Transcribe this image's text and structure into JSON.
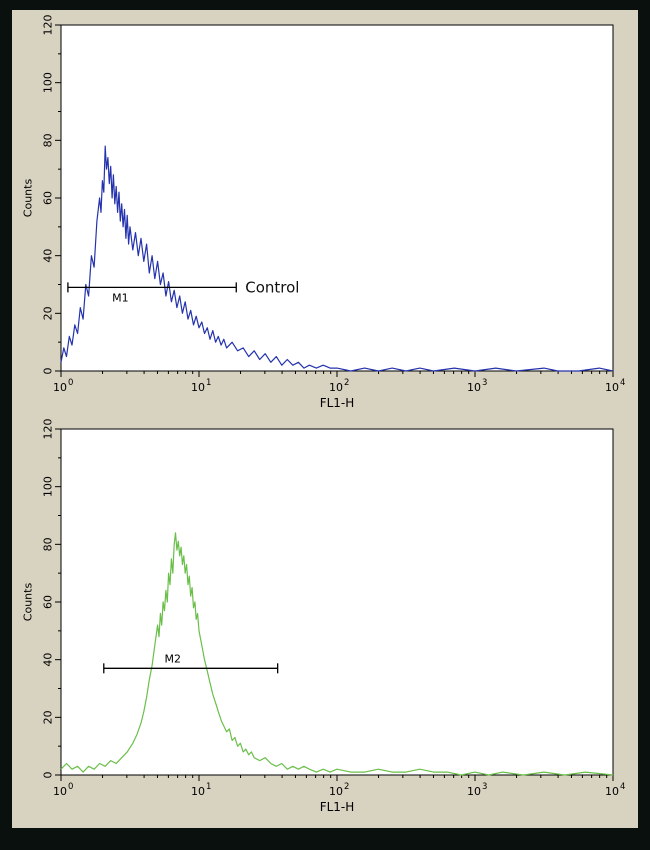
{
  "figure": {
    "frame_color": "#0a100e",
    "panel_color": "#d8d2c0",
    "plot_bg": "#ffffff",
    "axis_color": "#000000"
  },
  "chart_data": [
    {
      "type": "line",
      "name": "control-histogram",
      "xlabel": "FL1-H",
      "ylabel": "Counts",
      "x_scale": "log10",
      "x_range_exponents": [
        0,
        4
      ],
      "ylim": [
        0,
        120
      ],
      "yticks": [
        0,
        20,
        40,
        60,
        80,
        100,
        120
      ],
      "xticks": [
        "10^0",
        "10^1",
        "10^2",
        "10^3",
        "10^4"
      ],
      "grid": false,
      "legend": "none",
      "line_color": "#2433ad",
      "marker": {
        "label": "M1",
        "annotation": "Control",
        "y": 29,
        "x1": 0.05,
        "x2": 1.27,
        "label_x": 0.43,
        "label_side": "below"
      },
      "points": [
        [
          0.0,
          3
        ],
        [
          0.02,
          8
        ],
        [
          0.04,
          5
        ],
        [
          0.06,
          12
        ],
        [
          0.08,
          9
        ],
        [
          0.1,
          16
        ],
        [
          0.12,
          13
        ],
        [
          0.14,
          22
        ],
        [
          0.16,
          18
        ],
        [
          0.18,
          30
        ],
        [
          0.2,
          26
        ],
        [
          0.22,
          40
        ],
        [
          0.24,
          36
        ],
        [
          0.26,
          52
        ],
        [
          0.28,
          60
        ],
        [
          0.29,
          55
        ],
        [
          0.3,
          66
        ],
        [
          0.31,
          62
        ],
        [
          0.32,
          78
        ],
        [
          0.33,
          70
        ],
        [
          0.34,
          74
        ],
        [
          0.35,
          65
        ],
        [
          0.36,
          71
        ],
        [
          0.37,
          60
        ],
        [
          0.38,
          68
        ],
        [
          0.39,
          58
        ],
        [
          0.4,
          64
        ],
        [
          0.41,
          55
        ],
        [
          0.42,
          62
        ],
        [
          0.43,
          52
        ],
        [
          0.44,
          58
        ],
        [
          0.45,
          50
        ],
        [
          0.46,
          56
        ],
        [
          0.47,
          46
        ],
        [
          0.48,
          54
        ],
        [
          0.49,
          44
        ],
        [
          0.5,
          50
        ],
        [
          0.52,
          42
        ],
        [
          0.54,
          48
        ],
        [
          0.56,
          40
        ],
        [
          0.58,
          46
        ],
        [
          0.6,
          38
        ],
        [
          0.62,
          44
        ],
        [
          0.64,
          34
        ],
        [
          0.66,
          40
        ],
        [
          0.68,
          32
        ],
        [
          0.7,
          38
        ],
        [
          0.72,
          30
        ],
        [
          0.74,
          34
        ],
        [
          0.76,
          26
        ],
        [
          0.78,
          31
        ],
        [
          0.8,
          24
        ],
        [
          0.82,
          28
        ],
        [
          0.84,
          22
        ],
        [
          0.86,
          26
        ],
        [
          0.88,
          20
        ],
        [
          0.9,
          24
        ],
        [
          0.92,
          18
        ],
        [
          0.94,
          21
        ],
        [
          0.96,
          16
        ],
        [
          0.98,
          19
        ],
        [
          1.0,
          15
        ],
        [
          1.02,
          17
        ],
        [
          1.04,
          13
        ],
        [
          1.06,
          15
        ],
        [
          1.08,
          11
        ],
        [
          1.1,
          14
        ],
        [
          1.12,
          10
        ],
        [
          1.14,
          12
        ],
        [
          1.16,
          9
        ],
        [
          1.18,
          11
        ],
        [
          1.2,
          8
        ],
        [
          1.24,
          10
        ],
        [
          1.28,
          7
        ],
        [
          1.32,
          8
        ],
        [
          1.36,
          5
        ],
        [
          1.4,
          7
        ],
        [
          1.44,
          4
        ],
        [
          1.48,
          6
        ],
        [
          1.52,
          3
        ],
        [
          1.56,
          5
        ],
        [
          1.6,
          2
        ],
        [
          1.64,
          4
        ],
        [
          1.68,
          2
        ],
        [
          1.72,
          3
        ],
        [
          1.76,
          1
        ],
        [
          1.8,
          2
        ],
        [
          1.85,
          1
        ],
        [
          1.9,
          2
        ],
        [
          1.95,
          1
        ],
        [
          2.0,
          1
        ],
        [
          2.1,
          0
        ],
        [
          2.2,
          1
        ],
        [
          2.3,
          0
        ],
        [
          2.4,
          1
        ],
        [
          2.5,
          0
        ],
        [
          2.6,
          1
        ],
        [
          2.7,
          0
        ],
        [
          2.85,
          1
        ],
        [
          3.0,
          0
        ],
        [
          3.15,
          1
        ],
        [
          3.3,
          0
        ],
        [
          3.5,
          1
        ],
        [
          3.6,
          0
        ],
        [
          3.75,
          0
        ],
        [
          3.9,
          1
        ],
        [
          4.0,
          0
        ]
      ]
    },
    {
      "type": "line",
      "name": "antibody-histogram",
      "xlabel": "FL1-H",
      "ylabel": "Counts",
      "x_scale": "log10",
      "x_range_exponents": [
        0,
        4
      ],
      "ylim": [
        0,
        120
      ],
      "yticks": [
        0,
        20,
        40,
        60,
        80,
        100,
        120
      ],
      "xticks": [
        "10^0",
        "10^1",
        "10^2",
        "10^3",
        "10^4"
      ],
      "grid": false,
      "legend": "none",
      "line_color": "#6abf49",
      "marker": {
        "label": "M2",
        "annotation": "",
        "y": 37,
        "x1": 0.31,
        "x2": 1.57,
        "label_x": 0.81,
        "label_side": "above"
      },
      "points": [
        [
          0.0,
          2
        ],
        [
          0.04,
          4
        ],
        [
          0.08,
          2
        ],
        [
          0.12,
          3
        ],
        [
          0.16,
          1
        ],
        [
          0.2,
          3
        ],
        [
          0.24,
          2
        ],
        [
          0.28,
          4
        ],
        [
          0.32,
          3
        ],
        [
          0.36,
          5
        ],
        [
          0.4,
          4
        ],
        [
          0.44,
          6
        ],
        [
          0.48,
          8
        ],
        [
          0.52,
          11
        ],
        [
          0.55,
          14
        ],
        [
          0.58,
          18
        ],
        [
          0.6,
          22
        ],
        [
          0.62,
          27
        ],
        [
          0.64,
          33
        ],
        [
          0.66,
          38
        ],
        [
          0.68,
          45
        ],
        [
          0.7,
          52
        ],
        [
          0.71,
          48
        ],
        [
          0.72,
          56
        ],
        [
          0.73,
          52
        ],
        [
          0.74,
          60
        ],
        [
          0.75,
          57
        ],
        [
          0.76,
          64
        ],
        [
          0.77,
          60
        ],
        [
          0.78,
          70
        ],
        [
          0.79,
          66
        ],
        [
          0.8,
          75
        ],
        [
          0.81,
          70
        ],
        [
          0.82,
          80
        ],
        [
          0.83,
          84
        ],
        [
          0.84,
          78
        ],
        [
          0.85,
          81
        ],
        [
          0.86,
          76
        ],
        [
          0.87,
          79
        ],
        [
          0.88,
          73
        ],
        [
          0.89,
          76
        ],
        [
          0.9,
          70
        ],
        [
          0.91,
          73
        ],
        [
          0.92,
          66
        ],
        [
          0.93,
          69
        ],
        [
          0.94,
          62
        ],
        [
          0.95,
          65
        ],
        [
          0.96,
          58
        ],
        [
          0.97,
          60
        ],
        [
          0.98,
          54
        ],
        [
          0.99,
          56
        ],
        [
          1.0,
          50
        ],
        [
          1.02,
          45
        ],
        [
          1.04,
          40
        ],
        [
          1.06,
          36
        ],
        [
          1.08,
          32
        ],
        [
          1.1,
          28
        ],
        [
          1.12,
          25
        ],
        [
          1.14,
          22
        ],
        [
          1.16,
          19
        ],
        [
          1.18,
          17
        ],
        [
          1.2,
          15
        ],
        [
          1.22,
          16
        ],
        [
          1.24,
          12
        ],
        [
          1.26,
          13
        ],
        [
          1.28,
          10
        ],
        [
          1.3,
          11
        ],
        [
          1.32,
          8
        ],
        [
          1.34,
          9
        ],
        [
          1.36,
          7
        ],
        [
          1.38,
          8
        ],
        [
          1.4,
          6
        ],
        [
          1.44,
          5
        ],
        [
          1.48,
          6
        ],
        [
          1.52,
          4
        ],
        [
          1.56,
          3
        ],
        [
          1.6,
          4
        ],
        [
          1.64,
          2
        ],
        [
          1.68,
          3
        ],
        [
          1.72,
          2
        ],
        [
          1.76,
          3
        ],
        [
          1.8,
          2
        ],
        [
          1.85,
          1
        ],
        [
          1.9,
          2
        ],
        [
          1.95,
          1
        ],
        [
          2.0,
          2
        ],
        [
          2.1,
          1
        ],
        [
          2.2,
          1
        ],
        [
          2.3,
          2
        ],
        [
          2.4,
          1
        ],
        [
          2.5,
          1
        ],
        [
          2.6,
          2
        ],
        [
          2.7,
          1
        ],
        [
          2.8,
          1
        ],
        [
          2.9,
          0
        ],
        [
          3.0,
          1
        ],
        [
          3.1,
          0
        ],
        [
          3.2,
          1
        ],
        [
          3.35,
          0
        ],
        [
          3.5,
          1
        ],
        [
          3.65,
          0
        ],
        [
          3.8,
          1
        ],
        [
          4.0,
          0
        ]
      ]
    }
  ]
}
